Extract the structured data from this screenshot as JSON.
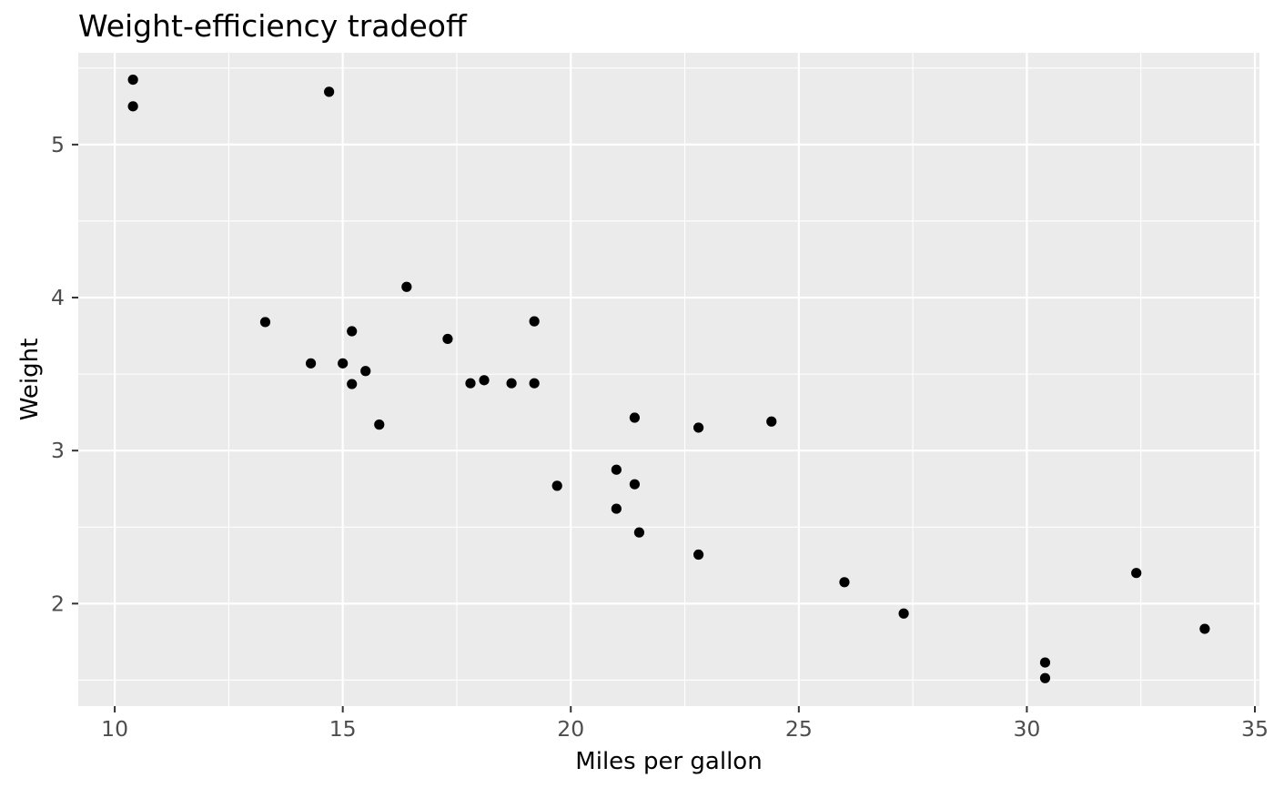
{
  "chart_data": {
    "type": "scatter",
    "title": "Weight-efficiency tradeoff",
    "xlabel": "Miles per gallon",
    "ylabel": "Weight",
    "xlim": [
      9.2,
      35.1
    ],
    "ylim": [
      1.33,
      5.6
    ],
    "x_ticks": [
      10,
      15,
      20,
      25,
      30,
      35
    ],
    "y_ticks": [
      2,
      3,
      4,
      5
    ],
    "x_tick_labels": [
      "10",
      "15",
      "20",
      "25",
      "30",
      "35"
    ],
    "y_tick_labels": [
      "2",
      "3",
      "4",
      "5"
    ],
    "x_minor_ticks": [
      12.5,
      17.5,
      22.5,
      27.5,
      32.5
    ],
    "y_minor_ticks": [
      1.5,
      2.5,
      3.5,
      4.5,
      5.5
    ],
    "grid": true,
    "colors": {
      "panel": "#ebebeb",
      "grid": "#ffffff",
      "point": "#000000"
    },
    "points": [
      {
        "x": 21.0,
        "y": 2.62
      },
      {
        "x": 21.0,
        "y": 2.875
      },
      {
        "x": 22.8,
        "y": 2.32
      },
      {
        "x": 21.4,
        "y": 3.215
      },
      {
        "x": 18.7,
        "y": 3.44
      },
      {
        "x": 18.1,
        "y": 3.46
      },
      {
        "x": 14.3,
        "y": 3.57
      },
      {
        "x": 24.4,
        "y": 3.19
      },
      {
        "x": 22.8,
        "y": 3.15
      },
      {
        "x": 19.2,
        "y": 3.44
      },
      {
        "x": 17.8,
        "y": 3.44
      },
      {
        "x": 16.4,
        "y": 4.07
      },
      {
        "x": 17.3,
        "y": 3.73
      },
      {
        "x": 15.2,
        "y": 3.78
      },
      {
        "x": 10.4,
        "y": 5.25
      },
      {
        "x": 10.4,
        "y": 5.424
      },
      {
        "x": 14.7,
        "y": 5.345
      },
      {
        "x": 32.4,
        "y": 2.2
      },
      {
        "x": 30.4,
        "y": 1.615
      },
      {
        "x": 33.9,
        "y": 1.835
      },
      {
        "x": 21.5,
        "y": 2.465
      },
      {
        "x": 15.5,
        "y": 3.52
      },
      {
        "x": 15.2,
        "y": 3.435
      },
      {
        "x": 13.3,
        "y": 3.84
      },
      {
        "x": 19.2,
        "y": 3.845
      },
      {
        "x": 27.3,
        "y": 1.935
      },
      {
        "x": 26.0,
        "y": 2.14
      },
      {
        "x": 30.4,
        "y": 1.513
      },
      {
        "x": 15.8,
        "y": 3.17
      },
      {
        "x": 19.7,
        "y": 2.77
      },
      {
        "x": 15.0,
        "y": 3.57
      },
      {
        "x": 21.4,
        "y": 2.78
      }
    ]
  }
}
